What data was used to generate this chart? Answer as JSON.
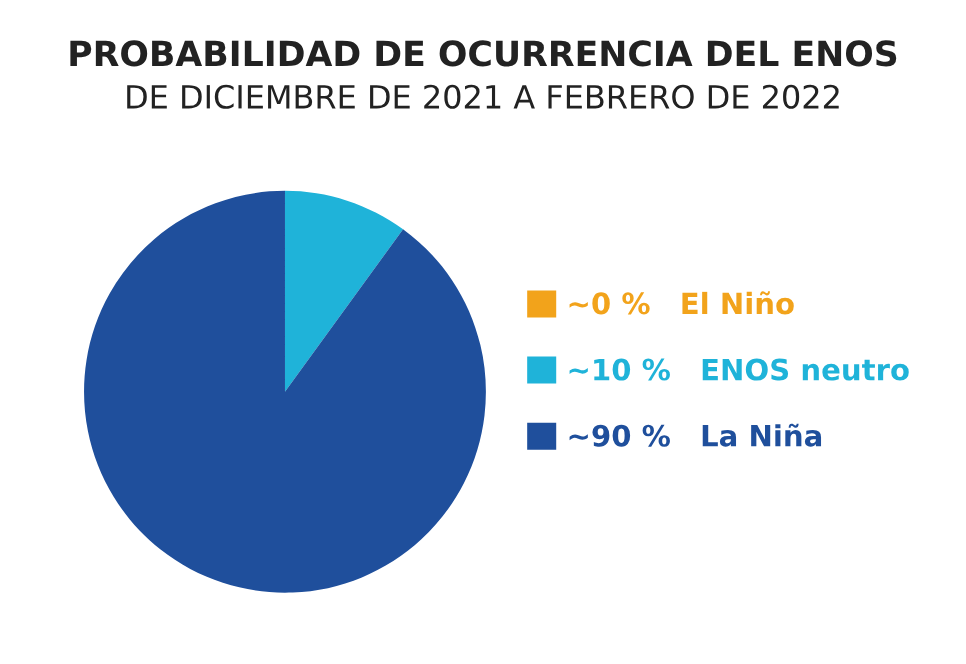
{
  "chart_data": {
    "type": "pie",
    "title": "PROBABILIDAD DE OCURRENCIA DEL ENOS",
    "subtitle": "DE DICIEMBRE DE 2021 A FEBRERO DE 2022",
    "categories": [
      "El Niño",
      "ENOS neutro",
      "La Niña"
    ],
    "values": [
      0,
      10,
      90
    ],
    "value_labels": [
      "~0 %",
      "~10 %",
      "~90 %"
    ],
    "colors": [
      "#f2a31b",
      "#1fb3d9",
      "#1f4f9c"
    ],
    "legend": "right"
  }
}
